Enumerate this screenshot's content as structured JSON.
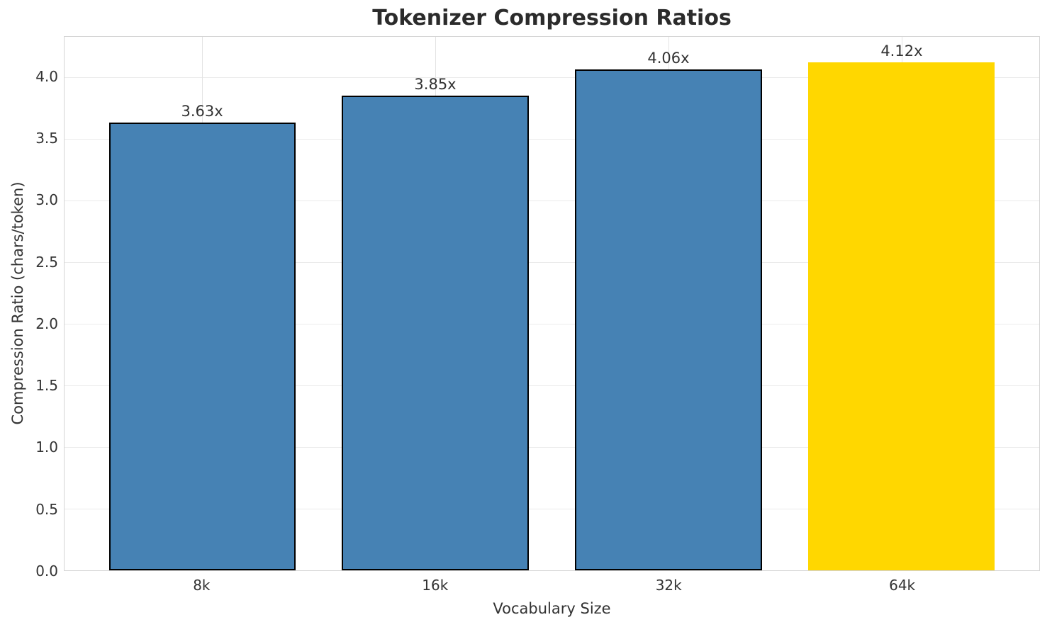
{
  "chart_data": {
    "type": "bar",
    "title": "Tokenizer Compression Ratios",
    "xlabel": "Vocabulary Size",
    "ylabel": "Compression Ratio (chars/token)",
    "categories": [
      "8k",
      "16k",
      "32k",
      "64k"
    ],
    "values": [
      3.63,
      3.85,
      4.06,
      4.12
    ],
    "bar_labels": [
      "3.63x",
      "3.85x",
      "4.06x",
      "4.12x"
    ],
    "yticks": [
      0.0,
      0.5,
      1.0,
      1.5,
      2.0,
      2.5,
      3.0,
      3.5,
      4.0
    ],
    "ylim": [
      0,
      4.326
    ],
    "grid": "on",
    "legend": "none",
    "bar_colors": [
      "#4682b4",
      "#4682b4",
      "#4682b4",
      "#ffd700"
    ],
    "bar_edge_colors": [
      "#000000",
      "#000000",
      "#000000",
      "none"
    ],
    "highlight_index": 3,
    "colors": {
      "bar_default": "#4682b4",
      "bar_highlight": "#ffd700",
      "bar_edge": "#000000",
      "grid": "#e8e8e8",
      "spine": "#d5d5d5",
      "text": "#333333",
      "title_text": "#2b2b2b",
      "background": "#ffffff"
    }
  }
}
